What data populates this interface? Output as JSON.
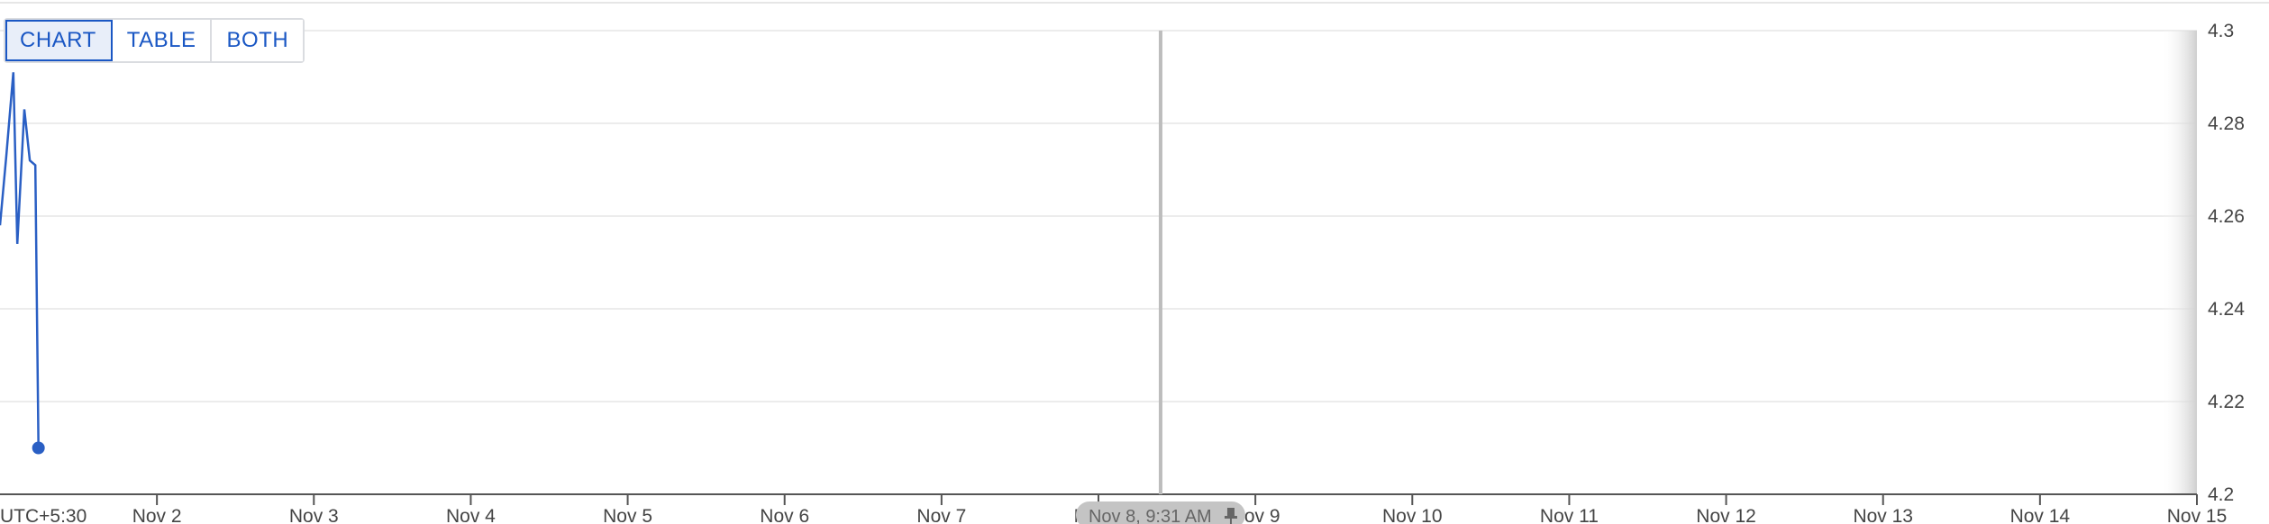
{
  "view_toggle": {
    "chart_label": "CHART",
    "table_label": "TABLE",
    "both_label": "BOTH"
  },
  "colors": {
    "series": "#2a5fc4",
    "grid": "#e6e6e6",
    "axis": "#555555",
    "marker_line": "#bdbdbd",
    "marker_pill": "#c4c4c4"
  },
  "marker": {
    "label": "Nov 8, 9:31 AM",
    "x_day": 8.396,
    "icon": "pin-icon"
  },
  "chart_data": {
    "type": "line",
    "timezone_label": "UTC+5:30",
    "x_tick_labels": [
      "Nov 2",
      "Nov 3",
      "Nov 4",
      "Nov 5",
      "Nov 6",
      "Nov 7",
      "Nov 8",
      "Nov 9",
      "Nov 10",
      "Nov 11",
      "Nov 12",
      "Nov 13",
      "Nov 14",
      "Nov 15"
    ],
    "x_tick_days": [
      2,
      3,
      4,
      5,
      6,
      7,
      8,
      9,
      10,
      11,
      12,
      13,
      14,
      15
    ],
    "y_tick_labels": [
      "4.3",
      "4.28",
      "4.26",
      "4.24",
      "4.22",
      "4.2"
    ],
    "xlim_days": [
      1.0,
      15.0
    ],
    "ylim": [
      4.2,
      4.3
    ],
    "grid": true,
    "series": [
      {
        "x_days": [
          1.0,
          1.04,
          1.085,
          1.11,
          1.155,
          1.19,
          1.225,
          1.245
        ],
        "values": [
          4.258,
          4.273,
          4.291,
          4.254,
          4.283,
          4.272,
          4.271,
          4.21
        ]
      }
    ],
    "last_point_marker": true
  }
}
